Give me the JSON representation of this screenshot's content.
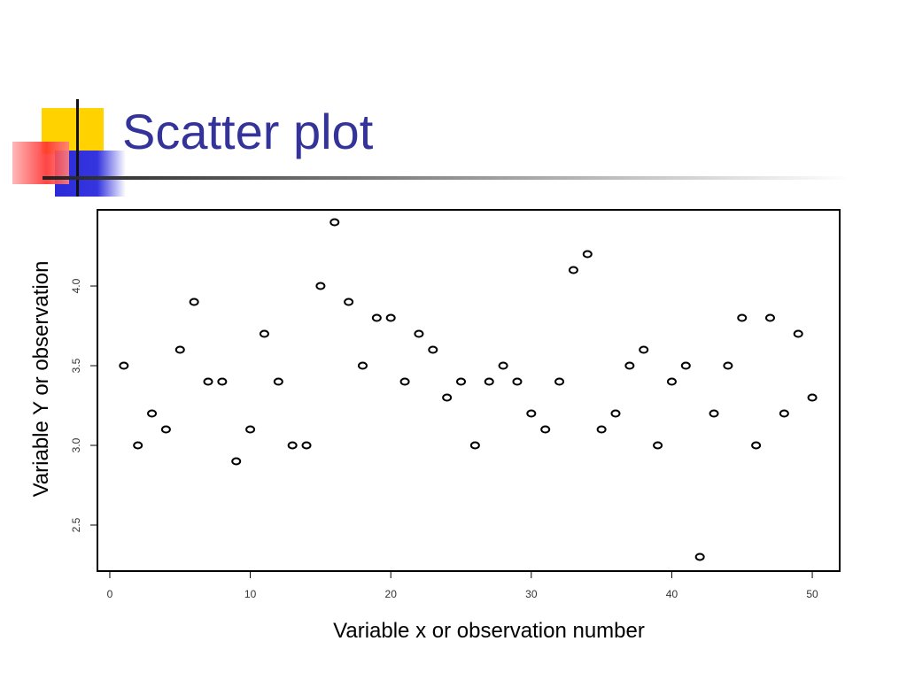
{
  "chart_data": {
    "type": "scatter",
    "title": "Scatter plot",
    "x_label": "Variable x or observation number",
    "y_label": "Variable Y or observation",
    "x": [
      1,
      2,
      3,
      4,
      5,
      6,
      7,
      8,
      9,
      10,
      11,
      12,
      13,
      14,
      15,
      16,
      17,
      18,
      19,
      20,
      21,
      22,
      23,
      24,
      25,
      26,
      27,
      28,
      29,
      30,
      31,
      32,
      33,
      34,
      35,
      36,
      37,
      38,
      39,
      40,
      41,
      42,
      43,
      44,
      45,
      46,
      47,
      48,
      49,
      50
    ],
    "values": [
      3.5,
      3.0,
      3.2,
      3.1,
      3.6,
      3.9,
      3.4,
      3.4,
      2.9,
      3.1,
      3.7,
      3.4,
      3.0,
      3.0,
      4.0,
      4.4,
      3.9,
      3.5,
      3.8,
      3.8,
      3.4,
      3.7,
      3.6,
      3.3,
      3.4,
      3.0,
      3.4,
      3.5,
      3.4,
      3.2,
      3.1,
      3.4,
      4.1,
      4.2,
      3.1,
      3.2,
      3.5,
      3.6,
      3.0,
      3.4,
      3.5,
      2.3,
      3.2,
      3.5,
      3.8,
      3.0,
      3.8,
      3.2,
      3.7,
      3.3
    ],
    "color": "#000000",
    "xlim": [
      -0.88,
      51.95
    ],
    "ylim": [
      2.211,
      4.478
    ],
    "xticks": [
      0,
      10,
      20,
      30,
      40,
      50
    ],
    "yticks": [
      2.5,
      {
        "value": 3,
        "label": "3.0"
      },
      3.5,
      {
        "value": 4,
        "label": "4.0"
      }
    ]
  }
}
